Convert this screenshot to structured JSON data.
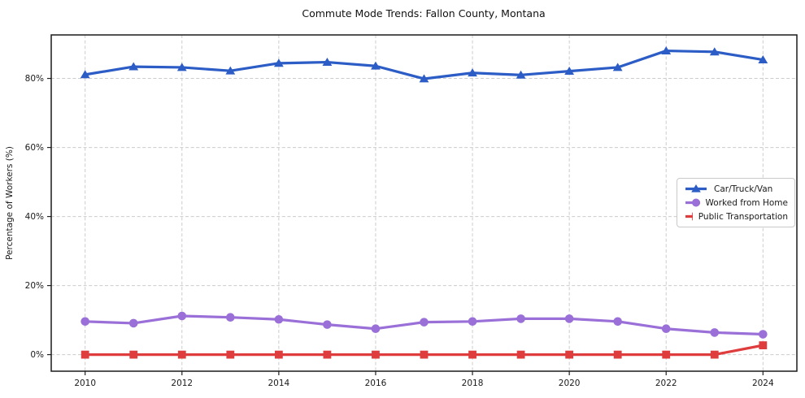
{
  "chart_data": {
    "type": "line",
    "title": "Commute Mode Trends: Fallon County, Montana",
    "xlabel": "",
    "ylabel": "Percentage of Workers (%)",
    "x": [
      2010,
      2011,
      2012,
      2013,
      2014,
      2015,
      2016,
      2017,
      2018,
      2019,
      2020,
      2021,
      2022,
      2023,
      2024
    ],
    "xtick_values": [
      2010,
      2012,
      2014,
      2016,
      2018,
      2020,
      2022,
      2024
    ],
    "xtick_labels": [
      "2010",
      "2012",
      "2014",
      "2016",
      "2018",
      "2020",
      "2022",
      "2024"
    ],
    "ytick_values": [
      0,
      20,
      40,
      60,
      80
    ],
    "ytick_labels": [
      "0%",
      "20%",
      "40%",
      "60%",
      "80%"
    ],
    "xlim": [
      2009.3,
      2024.7
    ],
    "ylim": [
      -4.8,
      92.6
    ],
    "grid": true,
    "legend_position": "center-right",
    "series": [
      {
        "name": "Car/Truck/Van",
        "color": "#2c5cc5",
        "marker": "triangle",
        "values": [
          81.1,
          83.4,
          83.2,
          82.2,
          84.4,
          84.7,
          83.6,
          79.9,
          81.6,
          81.0,
          82.1,
          83.2,
          88.0,
          87.7,
          85.4
        ]
      },
      {
        "name": "Worked from Home",
        "color": "#9a70d8",
        "marker": "circle",
        "values": [
          9.6,
          9.1,
          11.2,
          10.8,
          10.2,
          8.7,
          7.5,
          9.4,
          9.6,
          10.4,
          10.4,
          9.6,
          7.5,
          6.4,
          5.9
        ]
      },
      {
        "name": "Public Transportation",
        "color": "#df3c3e",
        "marker": "square",
        "values": [
          0.0,
          0.0,
          0.0,
          0.0,
          0.0,
          0.0,
          0.0,
          0.0,
          0.0,
          0.0,
          0.0,
          0.0,
          0.0,
          0.0,
          2.7
        ]
      }
    ]
  }
}
